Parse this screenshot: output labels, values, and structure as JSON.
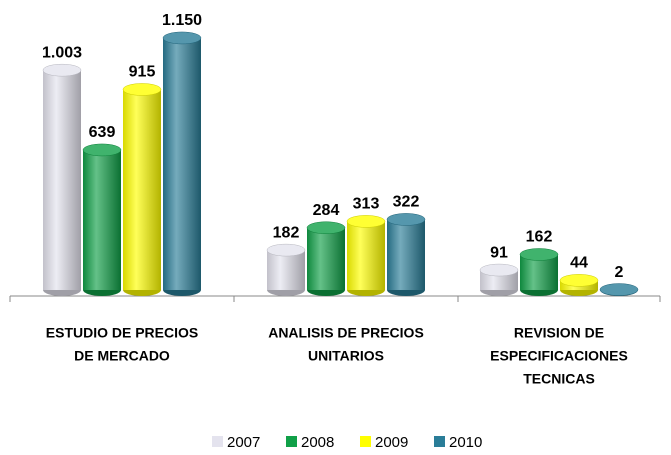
{
  "chart_data": {
    "type": "bar3d",
    "categories": [
      [
        "ESTUDIO DE PRECIOS",
        "DE MERCADO"
      ],
      [
        "ANALISIS DE PRECIOS",
        "UNITARIOS"
      ],
      [
        "REVISION DE",
        "ESPECIFICACIONES",
        "TECNICAS"
      ]
    ],
    "series": [
      {
        "name": "2007",
        "color": "#e4e3ee",
        "values": [
          1003,
          182,
          91
        ],
        "value_labels": [
          "1.003",
          "182",
          "91"
        ]
      },
      {
        "name": "2008",
        "color": "#10a048",
        "values": [
          639,
          284,
          162
        ],
        "value_labels": [
          "639",
          "284",
          "162"
        ]
      },
      {
        "name": "2009",
        "color": "#ffff00",
        "values": [
          915,
          313,
          44
        ],
        "value_labels": [
          "915",
          "313",
          "44"
        ]
      },
      {
        "name": "2010",
        "color": "#2a7d98",
        "values": [
          1150,
          322,
          2
        ],
        "value_labels": [
          "1.150",
          "322",
          "2"
        ]
      }
    ],
    "ylim": [
      0,
      1200
    ],
    "legend": "bottom"
  }
}
